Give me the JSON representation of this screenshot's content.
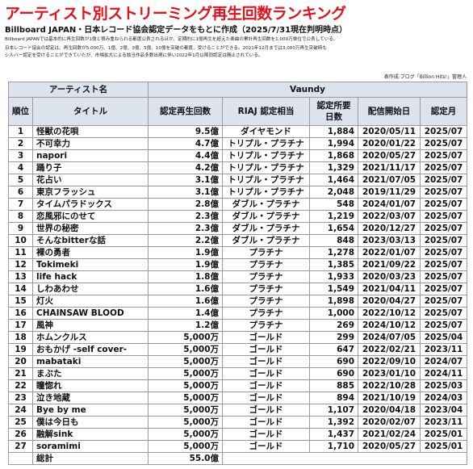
{
  "header": {
    "title": "アーティスト別ストリーミング再生回数ランキング",
    "subtitle": "Billboard JAPAN・日本レコード協会認定データをもとに作成（2025/7/31現在判明時点）",
    "notes": [
      "Billboard JAPANでは基本的に再生回数が1億と積み重ねられる都度公表されるほか、定期的に1億再生を超えた楽曲の累計再生回数を1,000万単位で公表している。",
      "日本レコード協会の認定は、再生回数が5,000万、1億、2億、3億、5億、10億を突破の都度、受けることができる。2021年12月までは3,000万再生突破時も",
      "シルバー認定を受けることができていたが、市場拡大による該当作品多数出現に伴い2022年1月以降同認定は廃止されている。"
    ],
    "credit": "表作成:ブログ「Billion Hits!」管理人"
  },
  "table": {
    "artist_label": "アーティスト名",
    "artist": "Vaundy",
    "columns": [
      "順位",
      "タイトル",
      "認定再生回数",
      "RIAJ 認定相当",
      "認定所要日数",
      "配信開始日",
      "認定月"
    ],
    "rows": [
      [
        "1",
        "怪獣の花唄",
        "9.5億",
        "ダイヤモンド",
        "1,884",
        "2020/05/11",
        "2025/07"
      ],
      [
        "2",
        "不可幸力",
        "4.7億",
        "トリプル・プラチナ",
        "1,994",
        "2020/01/22",
        "2025/07"
      ],
      [
        "3",
        "napori",
        "4.4億",
        "トリプル・プラチナ",
        "1,868",
        "2020/05/27",
        "2025/07"
      ],
      [
        "4",
        "踊り子",
        "4.2億",
        "トリプル・プラチナ",
        "1,329",
        "2021/11/17",
        "2025/07"
      ],
      [
        "5",
        "花占い",
        "3.1億",
        "トリプル・プラチナ",
        "1,464",
        "2021/07/05",
        "2025/07"
      ],
      [
        "6",
        "東京フラッシュ",
        "3.1億",
        "トリプル・プラチナ",
        "2,048",
        "2019/11/29",
        "2025/07"
      ],
      [
        "7",
        "タイムパラドックス",
        "2.8億",
        "ダブル・プラチナ",
        "548",
        "2024/01/07",
        "2025/07"
      ],
      [
        "8",
        "恋風邪にのせて",
        "2.3億",
        "ダブル・プラチナ",
        "1,219",
        "2022/03/07",
        "2025/07"
      ],
      [
        "9",
        "世界の秘密",
        "2.3億",
        "ダブル・プラチナ",
        "1,654",
        "2020/12/27",
        "2025/07"
      ],
      [
        "10",
        "そんなbitterな話",
        "2.2億",
        "ダブル・プラチナ",
        "848",
        "2023/03/13",
        "2025/07"
      ],
      [
        "11",
        "裸の勇者",
        "1.9億",
        "プラチナ",
        "1,278",
        "2022/01/07",
        "2025/07"
      ],
      [
        "12",
        "Tokimeki",
        "1.9億",
        "プラチナ",
        "1,385",
        "2021/09/22",
        "2025/07"
      ],
      [
        "13",
        "life hack",
        "1.8億",
        "プラチナ",
        "1,933",
        "2020/03/23",
        "2025/07"
      ],
      [
        "14",
        "しわあわせ",
        "1.6億",
        "プラチナ",
        "1,549",
        "2021/04/11",
        "2025/07"
      ],
      [
        "15",
        "灯火",
        "1.6億",
        "プラチナ",
        "1,898",
        "2020/04/27",
        "2025/07"
      ],
      [
        "16",
        "CHAINSAW BLOOD",
        "1.4億",
        "プラチナ",
        "1,000",
        "2022/10/12",
        "2025/07"
      ],
      [
        "17",
        "風神",
        "1.2億",
        "プラチナ",
        "269",
        "2024/10/12",
        "2025/07"
      ],
      [
        "18",
        "ホムンクルス",
        "5,000万",
        "ゴールド",
        "299",
        "2024/07/05",
        "2025/04"
      ],
      [
        "19",
        "おもかげ -self cover-",
        "5,000万",
        "ゴールド",
        "647",
        "2022/02/21",
        "2023/11"
      ],
      [
        "20",
        "mabataki",
        "5,000万",
        "ゴールド",
        "690",
        "2022/09/10",
        "2024/07"
      ],
      [
        "21",
        "まぶた",
        "5,000万",
        "ゴールド",
        "690",
        "2023/01/10",
        "2024/11"
      ],
      [
        "22",
        "瞳惚れ",
        "5,000万",
        "ゴールド",
        "885",
        "2022/10/28",
        "2025/03"
      ],
      [
        "23",
        "泣き地蔵",
        "5,000万",
        "ゴールド",
        "894",
        "2021/10/19",
        "2024/03"
      ],
      [
        "24",
        "Bye by me",
        "5,000万",
        "ゴールド",
        "1,107",
        "2020/04/18",
        "2023/04"
      ],
      [
        "25",
        "僕は今日も",
        "5,000万",
        "ゴールド",
        "1,392",
        "2020/02/07",
        "2023/11"
      ],
      [
        "26",
        "融解sink",
        "5,000万",
        "ゴールド",
        "1,437",
        "2021/02/24",
        "2025/01"
      ],
      [
        "27",
        "soramimi",
        "5,000万",
        "ゴールド",
        "1,710",
        "2020/05/27",
        "2025/01"
      ]
    ],
    "total_label": "総計",
    "total": "55.0億"
  }
}
